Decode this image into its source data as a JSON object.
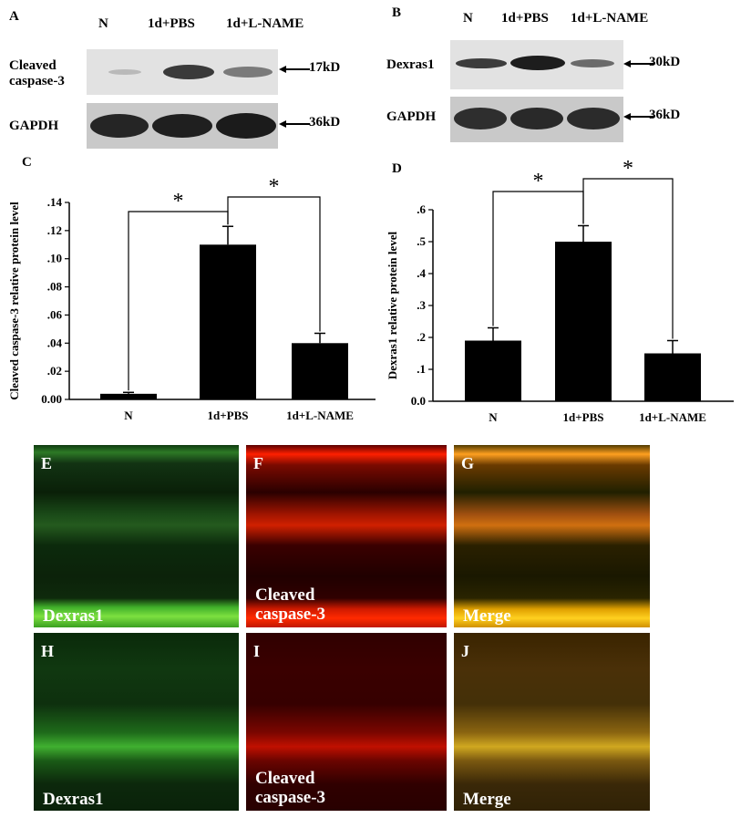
{
  "panels": {
    "A": {
      "label": "A",
      "lanes": [
        "N",
        "1d+PBS",
        "1d+L-NAME"
      ],
      "rows": [
        {
          "name_line1": "Cleaved",
          "name_line2": "caspase-3",
          "kd": "17kD"
        },
        {
          "name_line1": "GAPDH",
          "name_line2": "",
          "kd": "36kD"
        }
      ]
    },
    "B": {
      "label": "B",
      "lanes": [
        "N",
        "1d+PBS",
        "1d+L-NAME"
      ],
      "rows": [
        {
          "name_line1": "Dexras1",
          "name_line2": "",
          "kd": "30kD"
        },
        {
          "name_line1": "GAPDH",
          "name_line2": "",
          "kd": "36kD"
        }
      ]
    },
    "E": {
      "label": "E",
      "stain": "Dexras1"
    },
    "F": {
      "label": "F",
      "stain_line1": "Cleaved",
      "stain_line2": "caspase-3"
    },
    "G": {
      "label": "G",
      "stain": "Merge"
    },
    "H": {
      "label": "H",
      "stain": "Dexras1"
    },
    "I": {
      "label": "I",
      "stain_line1": "Cleaved",
      "stain_line2": "caspase-3"
    },
    "J": {
      "label": "J",
      "stain": "Merge"
    }
  },
  "chart_data": [
    {
      "type": "bar",
      "panel": "C",
      "categories": [
        "N",
        "1d+PBS",
        "1d+L-NAME"
      ],
      "values": [
        0.004,
        0.11,
        0.04
      ],
      "errors": [
        0.001,
        0.013,
        0.007
      ],
      "ylabel": "Cleaved caspase-3 relative protein level",
      "ylim": [
        0,
        0.14
      ],
      "yticks": [
        "0.00",
        ".02",
        ".04",
        ".06",
        ".08",
        ".10",
        ".12",
        ".14"
      ],
      "color": "#000000",
      "significance": [
        {
          "from": 0,
          "to": 1,
          "label": "*"
        },
        {
          "from": 1,
          "to": 2,
          "label": "*"
        }
      ]
    },
    {
      "type": "bar",
      "panel": "D",
      "categories": [
        "N",
        "1d+PBS",
        "1d+L-NAME"
      ],
      "values": [
        0.19,
        0.5,
        0.15
      ],
      "errors": [
        0.04,
        0.05,
        0.04
      ],
      "ylabel": "Dexras1 relative protein level",
      "ylim": [
        0,
        0.6
      ],
      "yticks": [
        "0.0",
        ".1",
        ".2",
        ".3",
        ".4",
        ".5",
        ".6"
      ],
      "color": "#000000",
      "significance": [
        {
          "from": 0,
          "to": 1,
          "label": "*"
        },
        {
          "from": 1,
          "to": 2,
          "label": "*"
        }
      ]
    }
  ]
}
